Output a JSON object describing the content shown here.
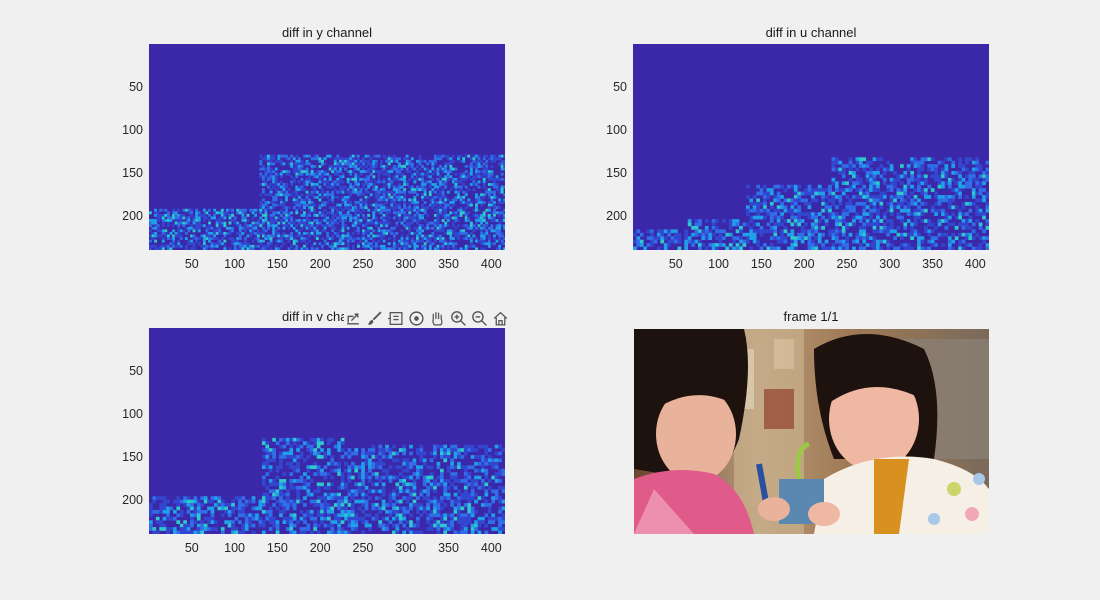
{
  "figure": {
    "subplots": [
      {
        "title": "diff in y channel"
      },
      {
        "title": "diff in u channel"
      },
      {
        "title": "diff in v channel"
      },
      {
        "title": "frame 1/1"
      }
    ],
    "y_ticks": [
      "50",
      "100",
      "150",
      "200"
    ],
    "x_ticks": [
      "50",
      "100",
      "150",
      "200",
      "250",
      "300",
      "350",
      "400"
    ],
    "toolbar": {
      "export": "export-icon",
      "brush": "brush-icon",
      "datatip": "datatip-icon",
      "rotate": "rotate-3d-icon",
      "pan": "pan-hand-icon",
      "zoom_in": "zoom-in-icon",
      "zoom_out": "zoom-out-icon",
      "home": "restore-view-icon"
    },
    "colors": {
      "background": "#f0f0f0",
      "colormap_low": "#3b28a8",
      "colormap_mid": "#2f6fe8",
      "colormap_high": "#2ec9c9"
    }
  },
  "chart_data": [
    {
      "type": "heatmap",
      "title": "diff in y channel",
      "xlim": [
        0,
        416
      ],
      "ylim": [
        0,
        240
      ],
      "xticks": [
        50,
        100,
        150,
        200,
        250,
        300,
        350,
        400
      ],
      "yticks": [
        50,
        100,
        150,
        200
      ]
    },
    {
      "type": "heatmap",
      "title": "diff in u channel",
      "xlim": [
        0,
        416
      ],
      "ylim": [
        0,
        240
      ],
      "xticks": [
        50,
        100,
        150,
        200,
        250,
        300,
        350,
        400
      ],
      "yticks": [
        50,
        100,
        150,
        200
      ]
    },
    {
      "type": "heatmap",
      "title": "diff in v channel",
      "xlim": [
        0,
        416
      ],
      "ylim": [
        0,
        240
      ],
      "xticks": [
        50,
        100,
        150,
        200,
        250,
        300,
        350,
        400
      ],
      "yticks": [
        50,
        100,
        150,
        200
      ]
    }
  ]
}
